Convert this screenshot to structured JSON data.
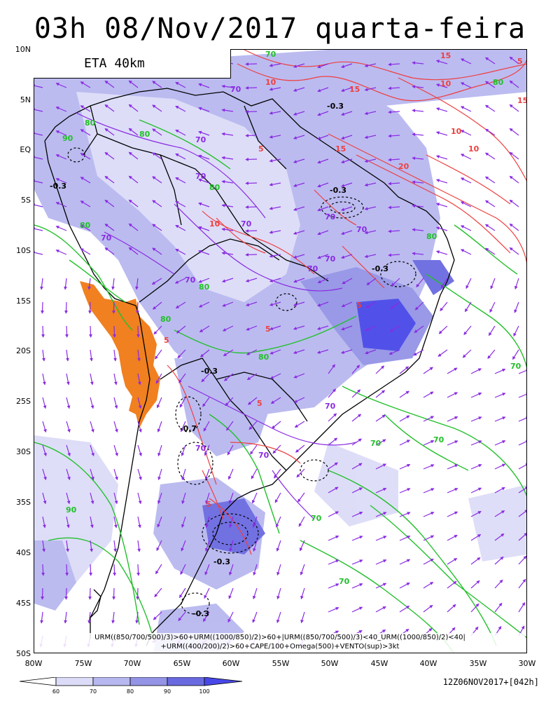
{
  "title": "03h 08/Nov/2017 quarta-feira",
  "model_label": "ETA 40km",
  "lat_labels": [
    "10N",
    "5N",
    "EQ",
    "5S",
    "10S",
    "15S",
    "20S",
    "25S",
    "30S",
    "35S",
    "40S",
    "45S",
    "50S"
  ],
  "lon_labels": [
    "80W",
    "75W",
    "70W",
    "65W",
    "60W",
    "55W",
    "50W",
    "45W",
    "40W",
    "35W",
    "30W"
  ],
  "formula_line1": "URM((850/700/500)/3)>60+URM((1000/850)/2)>60+|URM((850/700/500)/3)<40_URM((1000/850)/2)<40|",
  "formula_line2": "+URM((400/200)/2)>60+CAPE/100+Omega(500)+VENTO(sup)>3kt",
  "colorbar": {
    "labels": [
      "60",
      "70",
      "80",
      "90",
      "100"
    ],
    "colors": [
      "#ffffff",
      "#dcdcf8",
      "#b8b8f0",
      "#9494e6",
      "#6a6ae0",
      "#4848e8"
    ]
  },
  "run_info": "12Z06NOV2017+[042h]",
  "map_labels": {
    "rh_contours": [
      "70",
      "70",
      "70",
      "70",
      "70",
      "70",
      "70",
      "70",
      "70",
      "70",
      "70",
      "70",
      "70"
    ],
    "green_contours": [
      "80",
      "80",
      "80",
      "80",
      "80",
      "80",
      "80",
      "80",
      "80",
      "90",
      "90",
      "70",
      "70",
      "70",
      "70",
      "70",
      "70"
    ],
    "cape_contours": [
      "15",
      "15",
      "15",
      "10",
      "10",
      "10",
      "10",
      "5",
      "5",
      "5",
      "5",
      "5",
      "5",
      "5",
      "20",
      "15",
      "10"
    ],
    "omega_contours": [
      "-0.3",
      "-0.3",
      "-0.3",
      "-0.3",
      "-0.3",
      "-0.3",
      "-0.7",
      "-0.3"
    ]
  },
  "colors": {
    "rh_fill": "#9494e6",
    "rh_line": "#8a2be2",
    "green_line": "#22c02a",
    "cape_line": "#ee4040",
    "omega_line": "#000000",
    "andes": "#f08020",
    "vector": "#8a2be2"
  }
}
